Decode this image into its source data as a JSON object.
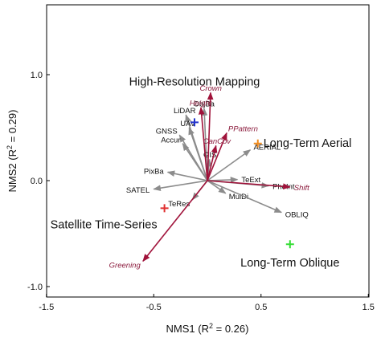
{
  "chart_data": {
    "type": "scatter",
    "xlabel": {
      "prefix": "NMS1 (R",
      "sup": "2",
      "suffix": " = 0.26)"
    },
    "ylabel": {
      "prefix": "NMS2 (R",
      "sup": "2",
      "suffix": " = 0.29)"
    },
    "xlim": [
      -1.5,
      1.5
    ],
    "ylim": [
      -1.0,
      1.0
    ],
    "x_ticks": [
      "-1.5",
      "-0.5",
      "0.5",
      "1.5"
    ],
    "y_ticks": [
      "1.0",
      "0.0",
      "-1.0"
    ],
    "grid": false,
    "colors": {
      "method_vector": "#8c8c8c",
      "environment_vector": "#a0123a",
      "environment_label": "#8b1a3c"
    },
    "method_vectors": [
      {
        "label": "LiDAR",
        "x": -0.2,
        "y": 0.62
      },
      {
        "label": "ObjBa",
        "x": -0.03,
        "y": 0.68
      },
      {
        "label": "UAV",
        "x": -0.17,
        "y": 0.5
      },
      {
        "label": "GNSS",
        "x": -0.26,
        "y": 0.43
      },
      {
        "label": "Accur",
        "x": -0.23,
        "y": 0.35
      },
      {
        "label": "PixBa",
        "x": -0.37,
        "y": 0.08
      },
      {
        "label": "SATEL",
        "x": -0.5,
        "y": -0.08
      },
      {
        "label": "GIS",
        "x": 0.02,
        "y": 0.2
      },
      {
        "label": "AERIAL",
        "x": 0.4,
        "y": 0.29
      },
      {
        "label": "TeExt",
        "x": 0.28,
        "y": 0.01
      },
      {
        "label": "PhoInt",
        "x": 0.57,
        "y": -0.05
      },
      {
        "label": "MulDi",
        "x": 0.17,
        "y": -0.12
      },
      {
        "label": "TeRes",
        "x": -0.14,
        "y": -0.18
      },
      {
        "label": "OBLIQ",
        "x": 0.69,
        "y": -0.3
      }
    ],
    "environment_vectors": [
      {
        "label": "Crown",
        "x": 0.03,
        "y": 0.83
      },
      {
        "label": "Height",
        "x": -0.06,
        "y": 0.69
      },
      {
        "label": "PPattern",
        "x": 0.18,
        "y": 0.45
      },
      {
        "label": "CanCov",
        "x": 0.08,
        "y": 0.33
      },
      {
        "label": "Shift",
        "x": 0.77,
        "y": -0.06
      },
      {
        "label": "Greening",
        "x": -0.6,
        "y": -0.76
      }
    ],
    "group_centroids": [
      {
        "label": "High-Resolution Mapping",
        "x": -0.12,
        "y": 0.55,
        "color": "#2233cc"
      },
      {
        "label": "Long-Term Aerial",
        "x": 0.47,
        "y": 0.35,
        "color": "#f08a1c"
      },
      {
        "label": "Satellite Time-Series",
        "x": -0.4,
        "y": -0.26,
        "color": "#e03030"
      },
      {
        "label": "Long-Term Oblique",
        "x": 0.77,
        "y": -0.6,
        "color": "#33dd33"
      }
    ]
  }
}
